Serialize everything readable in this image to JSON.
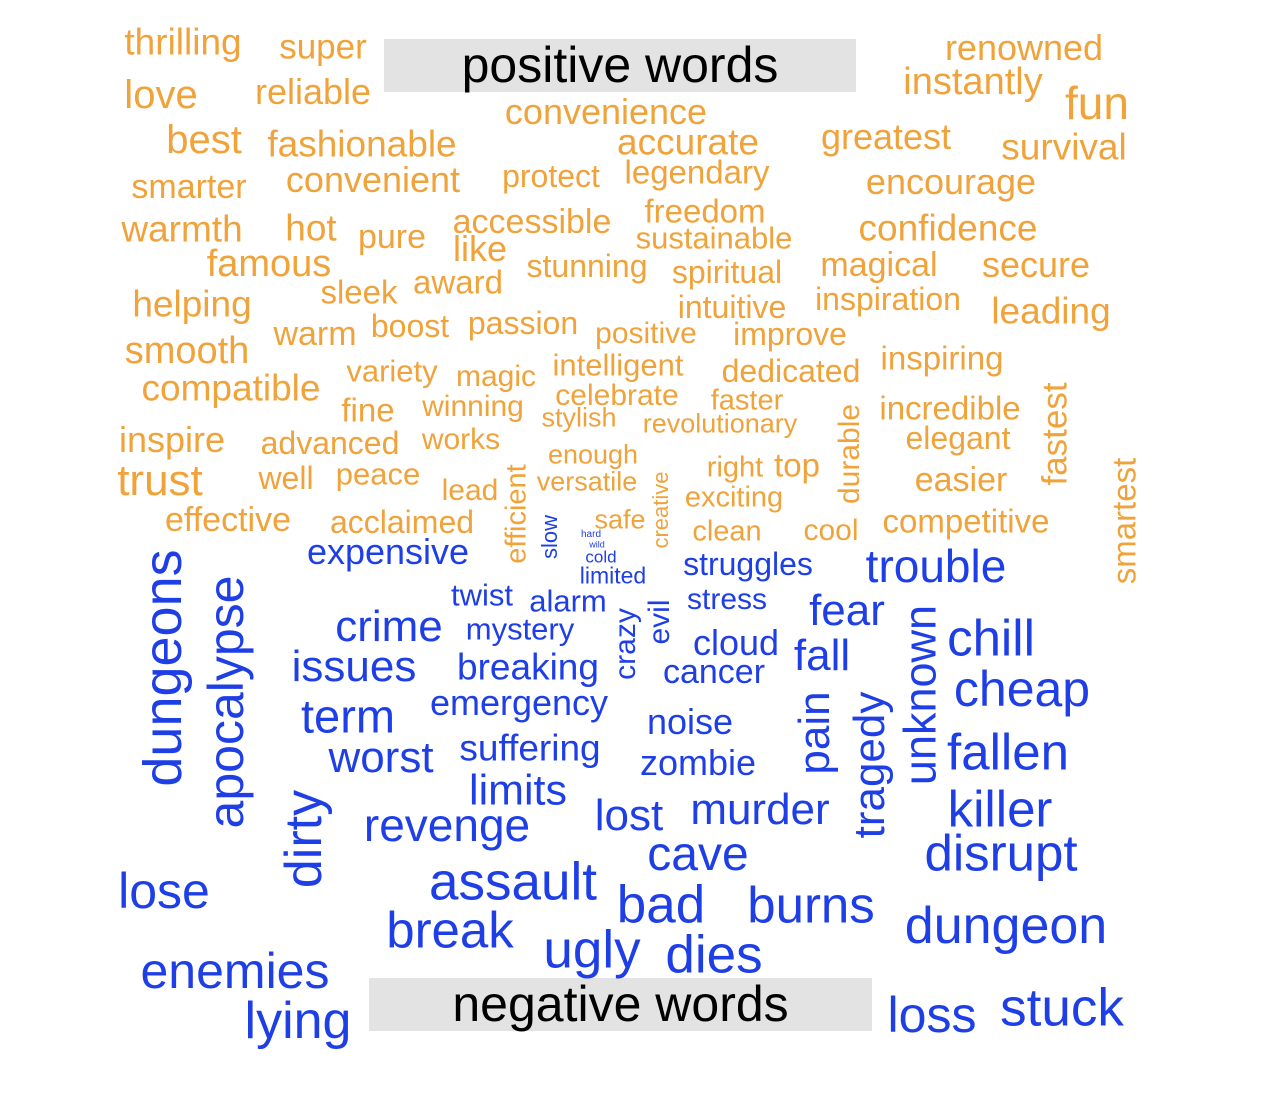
{
  "labels": {
    "positive": "positive words",
    "negative": "negative words"
  },
  "colors": {
    "positive": "#f0a33a",
    "negative": "#1f3fe6",
    "label_bg": "#e3e3e3",
    "label_text": "#000000"
  },
  "positive_words": [
    "thrilling",
    "super",
    "love",
    "reliable",
    "renowned",
    "instantly",
    "fun",
    "convenience",
    "best",
    "fashionable",
    "accurate",
    "greatest",
    "survival",
    "smarter",
    "convenient",
    "protect",
    "legendary",
    "encourage",
    "freedom",
    "warmth",
    "hot",
    "pure",
    "accessible",
    "sustainable",
    "confidence",
    "like",
    "famous",
    "stunning",
    "spiritual",
    "magical",
    "secure",
    "sleek",
    "award",
    "helping",
    "intuitive",
    "inspiration",
    "leading",
    "warm",
    "boost",
    "passion",
    "positive",
    "improve",
    "smooth",
    "intelligent",
    "inspiring",
    "variety",
    "magic",
    "dedicated",
    "compatible",
    "celebrate",
    "faster",
    "fine",
    "winning",
    "stylish",
    "revolutionary",
    "durable",
    "incredible",
    "fastest",
    "inspire",
    "advanced",
    "works",
    "elegant",
    "enough",
    "smartest",
    "trust",
    "well",
    "peace",
    "right",
    "top",
    "versatile",
    "lead",
    "easier",
    "exciting",
    "creative",
    "efficient",
    "effective",
    "acclaimed",
    "safe",
    "clean",
    "cool",
    "competitive"
  ],
  "negative_words": [
    "hard",
    "wild",
    "cold",
    "slow",
    "expensive",
    "limited",
    "struggles",
    "trouble",
    "dungeons",
    "apocalypse",
    "twist",
    "alarm",
    "stress",
    "crime",
    "mystery",
    "crazy",
    "evil",
    "fear",
    "cloud",
    "chill",
    "issues",
    "breaking",
    "cancer",
    "fall",
    "unknown",
    "cheap",
    "term",
    "emergency",
    "noise",
    "pain",
    "tragedy",
    "suffering",
    "worst",
    "zombie",
    "fallen",
    "limits",
    "dirty",
    "revenge",
    "lost",
    "murder",
    "killer",
    "cave",
    "disrupt",
    "lose",
    "assault",
    "bad",
    "burns",
    "break",
    "dungeon",
    "ugly",
    "dies",
    "enemies",
    "lying",
    "loss",
    "stuck"
  ]
}
